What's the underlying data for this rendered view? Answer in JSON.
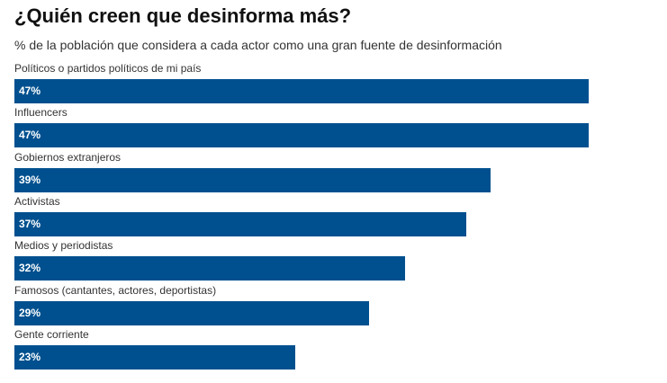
{
  "header": {
    "title": "¿Quién creen que desinforma más?",
    "subtitle": "% de la población que considera a cada actor como una gran fuente de desinformación"
  },
  "chart_data": {
    "type": "bar",
    "orientation": "horizontal",
    "categories": [
      "Políticos o partidos políticos de mi país",
      "Influencers",
      "Gobiernos extranjeros",
      "Activistas",
      "Medios y periodistas",
      "Famosos (cantantes, actores, deportistas)",
      "Gente corriente"
    ],
    "values": [
      47,
      47,
      39,
      37,
      32,
      29,
      23
    ],
    "value_labels": [
      "47%",
      "47%",
      "39%",
      "37%",
      "32%",
      "29%",
      "23%"
    ],
    "title": "¿Quién creen que desinforma más?",
    "subtitle": "% de la población que considera a cada actor como una gran fuente de desinformación",
    "xlabel": "",
    "ylabel": "",
    "xlim": [
      0,
      47
    ],
    "grid": false,
    "legend": "none",
    "bar_color": "#00508f"
  }
}
